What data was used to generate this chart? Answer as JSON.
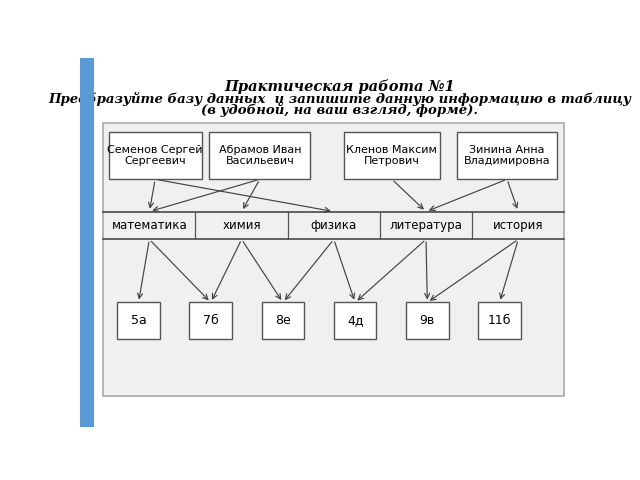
{
  "title_line1": "Практическая работа №1",
  "title_line2": "Преобразуйте базу данных  и запишите данную информацию в таблицу",
  "title_line3": "(в удобной, на ваш взгляд, форме).",
  "teachers": [
    "Семенов Сергей\nСергеевич",
    "Абрамов Иван\nВасильевич",
    "Кленов Максим\nПетрович",
    "Зинина Анна\nВладимировна"
  ],
  "subjects": [
    "математика",
    "химия",
    "физика",
    "литература",
    "история"
  ],
  "classes": [
    "5а",
    "7б",
    "8е",
    "4д",
    "9в",
    "11б"
  ],
  "teacher_subject_arrows": [
    [
      0,
      0
    ],
    [
      0,
      2
    ],
    [
      1,
      1
    ],
    [
      1,
      0
    ],
    [
      2,
      3
    ],
    [
      3,
      4
    ],
    [
      3,
      3
    ]
  ],
  "subject_class_arrows": [
    [
      0,
      0
    ],
    [
      0,
      1
    ],
    [
      1,
      2
    ],
    [
      1,
      1
    ],
    [
      2,
      3
    ],
    [
      2,
      2
    ],
    [
      3,
      4
    ],
    [
      3,
      3
    ],
    [
      4,
      5
    ],
    [
      4,
      4
    ]
  ],
  "bg_color": "#ffffff",
  "box_color": "#ffffff",
  "box_edge_color": "#555555",
  "arrow_color": "#444444",
  "text_color": "#000000",
  "outer_box_edge": "#aaaaaa",
  "outer_box_fill": "#f0f0f0",
  "title_color": "#000000",
  "left_bar_color": "#5b9bd5",
  "left_bar_width": 18,
  "left_bar_gradient_top": "#7ab3e0",
  "left_bar_gradient_bot": "#3a78b5"
}
